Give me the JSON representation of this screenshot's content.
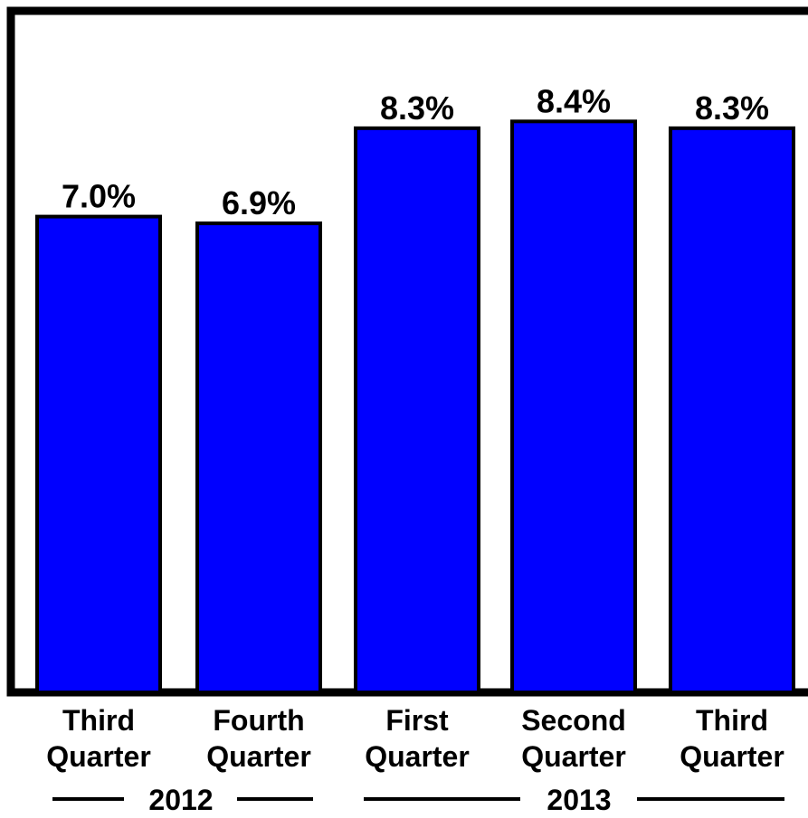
{
  "chart_data": {
    "type": "bar",
    "categories": [
      [
        "Third",
        "Quarter"
      ],
      [
        "Fourth",
        "Quarter"
      ],
      [
        "First",
        "Quarter"
      ],
      [
        "Second",
        "Quarter"
      ],
      [
        "Third",
        "Quarter"
      ]
    ],
    "values": [
      7.0,
      6.9,
      8.3,
      8.4,
      8.3
    ],
    "value_labels": [
      "7.0%",
      "6.9%",
      "8.3%",
      "8.4%",
      "8.3%"
    ],
    "groups": [
      {
        "label": "2012",
        "category_indices": [
          0,
          1
        ]
      },
      {
        "label": "2013",
        "category_indices": [
          2,
          3,
          4
        ]
      }
    ],
    "ylim": [
      0,
      9.5
    ],
    "grid": false,
    "legend": "none",
    "colors": {
      "bar": "#0000ff",
      "bar_edge": "#000000",
      "frame": "#000000"
    }
  }
}
